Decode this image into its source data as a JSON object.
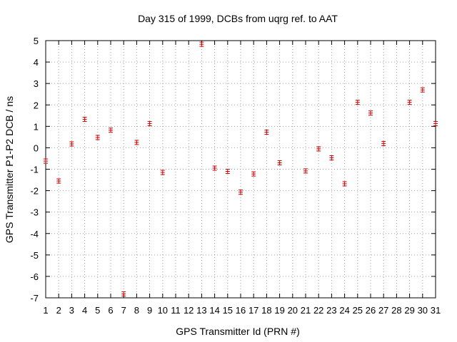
{
  "chart_data": {
    "type": "scatter",
    "title": "Day 315 of 1999, DCBs from uqrg ref. to AAT",
    "xlabel": "GPS Transmitter Id (PRN #)",
    "ylabel": "GPS Transmitter P1-P2 DCB / ns",
    "xlim": [
      1,
      31
    ],
    "ylim": [
      -7,
      5
    ],
    "grid": true,
    "x_ticks": [
      "1",
      "2",
      "3",
      "4",
      "5",
      "6",
      "7",
      "8",
      "9",
      "10",
      "11",
      "12",
      "13",
      "14",
      "15",
      "16",
      "17",
      "18",
      "19",
      "20",
      "21",
      "22",
      "23",
      "24",
      "25",
      "26",
      "27",
      "28",
      "29",
      "30",
      "31"
    ],
    "y_ticks": [
      "5",
      "4",
      "3",
      "2",
      "1",
      "0",
      "-1",
      "-2",
      "-3",
      "-4",
      "-5",
      "-6",
      "-7"
    ],
    "series": [
      {
        "color": "#cc0000",
        "marker": "errorbar",
        "points": [
          {
            "x": 1,
            "y": -0.62,
            "err": 0.1
          },
          {
            "x": 2,
            "y": -1.55,
            "err": 0.1
          },
          {
            "x": 3,
            "y": 0.18,
            "err": 0.1
          },
          {
            "x": 4,
            "y": 1.33,
            "err": 0.1
          },
          {
            "x": 5,
            "y": 0.48,
            "err": 0.1
          },
          {
            "x": 6,
            "y": 0.82,
            "err": 0.1
          },
          {
            "x": 7,
            "y": -6.82,
            "err": 0.1
          },
          {
            "x": 8,
            "y": 0.25,
            "err": 0.1
          },
          {
            "x": 9,
            "y": 1.13,
            "err": 0.1
          },
          {
            "x": 10,
            "y": -1.15,
            "err": 0.1
          },
          {
            "x": 13,
            "y": 4.83,
            "err": 0.1
          },
          {
            "x": 14,
            "y": -0.95,
            "err": 0.1
          },
          {
            "x": 15,
            "y": -1.1,
            "err": 0.1
          },
          {
            "x": 16,
            "y": -2.07,
            "err": 0.1
          },
          {
            "x": 17,
            "y": -1.22,
            "err": 0.1
          },
          {
            "x": 18,
            "y": 0.73,
            "err": 0.1
          },
          {
            "x": 19,
            "y": -0.7,
            "err": 0.1
          },
          {
            "x": 21,
            "y": -1.08,
            "err": 0.1
          },
          {
            "x": 22,
            "y": -0.05,
            "err": 0.1
          },
          {
            "x": 23,
            "y": -0.47,
            "err": 0.1
          },
          {
            "x": 24,
            "y": -1.68,
            "err": 0.1
          },
          {
            "x": 25,
            "y": 2.12,
            "err": 0.1
          },
          {
            "x": 26,
            "y": 1.62,
            "err": 0.1
          },
          {
            "x": 27,
            "y": 0.2,
            "err": 0.1
          },
          {
            "x": 29,
            "y": 2.12,
            "err": 0.1
          },
          {
            "x": 30,
            "y": 2.7,
            "err": 0.1
          },
          {
            "x": 31,
            "y": 1.13,
            "err": 0.1
          }
        ]
      }
    ]
  }
}
